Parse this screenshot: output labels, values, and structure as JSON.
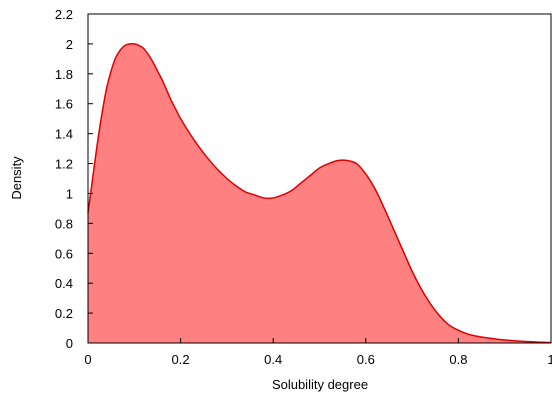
{
  "chart_data": {
    "type": "area",
    "title": "",
    "xlabel": "Solubility degree",
    "ylabel": "Density",
    "xlim": [
      0,
      1
    ],
    "ylim": [
      0,
      2.2
    ],
    "grid": false,
    "legend": "none",
    "x_ticks": [
      {
        "value": 0,
        "label": "0"
      },
      {
        "value": 0.2,
        "label": "0.2"
      },
      {
        "value": 0.4,
        "label": "0.4"
      },
      {
        "value": 0.6,
        "label": "0.6"
      },
      {
        "value": 0.8,
        "label": "0.8"
      },
      {
        "value": 1,
        "label": "1"
      }
    ],
    "y_ticks": [
      {
        "value": 0,
        "label": "0"
      },
      {
        "value": 0.2,
        "label": "0.2"
      },
      {
        "value": 0.4,
        "label": "0.4"
      },
      {
        "value": 0.6,
        "label": "0.6"
      },
      {
        "value": 0.8,
        "label": "0.8"
      },
      {
        "value": 1,
        "label": "1"
      },
      {
        "value": 1.2,
        "label": "1.2"
      },
      {
        "value": 1.4,
        "label": "1.4"
      },
      {
        "value": 1.6,
        "label": "1.6"
      },
      {
        "value": 1.8,
        "label": "1.8"
      },
      {
        "value": 2,
        "label": "2"
      },
      {
        "value": 2.2,
        "label": "2.2"
      }
    ],
    "series": [
      {
        "fill_color": "#ff8080",
        "line_color": "#dd0000",
        "x": [
          0,
          0.01,
          0.02,
          0.03,
          0.04,
          0.05,
          0.06,
          0.07,
          0.08,
          0.09,
          0.1,
          0.11,
          0.12,
          0.13,
          0.14,
          0.15,
          0.16,
          0.17,
          0.18,
          0.19,
          0.2,
          0.22,
          0.24,
          0.26,
          0.28,
          0.3,
          0.32,
          0.34,
          0.36,
          0.38,
          0.4,
          0.42,
          0.44,
          0.46,
          0.48,
          0.5,
          0.52,
          0.54,
          0.56,
          0.58,
          0.6,
          0.62,
          0.64,
          0.66,
          0.68,
          0.7,
          0.72,
          0.74,
          0.76,
          0.78,
          0.8,
          0.82,
          0.84,
          0.86,
          0.88,
          0.9,
          0.92,
          0.94,
          0.96,
          0.98,
          1.0
        ],
        "y": [
          0.87,
          1.1,
          1.33,
          1.53,
          1.7,
          1.82,
          1.91,
          1.96,
          1.99,
          2.0,
          2.0,
          1.99,
          1.97,
          1.93,
          1.88,
          1.82,
          1.76,
          1.69,
          1.62,
          1.56,
          1.5,
          1.4,
          1.31,
          1.23,
          1.16,
          1.1,
          1.05,
          1.01,
          0.99,
          0.97,
          0.97,
          0.99,
          1.02,
          1.07,
          1.12,
          1.17,
          1.2,
          1.22,
          1.22,
          1.2,
          1.13,
          1.03,
          0.9,
          0.76,
          0.62,
          0.48,
          0.36,
          0.26,
          0.18,
          0.12,
          0.085,
          0.06,
          0.045,
          0.035,
          0.027,
          0.02,
          0.015,
          0.011,
          0.008,
          0.005,
          0.003
        ]
      }
    ]
  }
}
